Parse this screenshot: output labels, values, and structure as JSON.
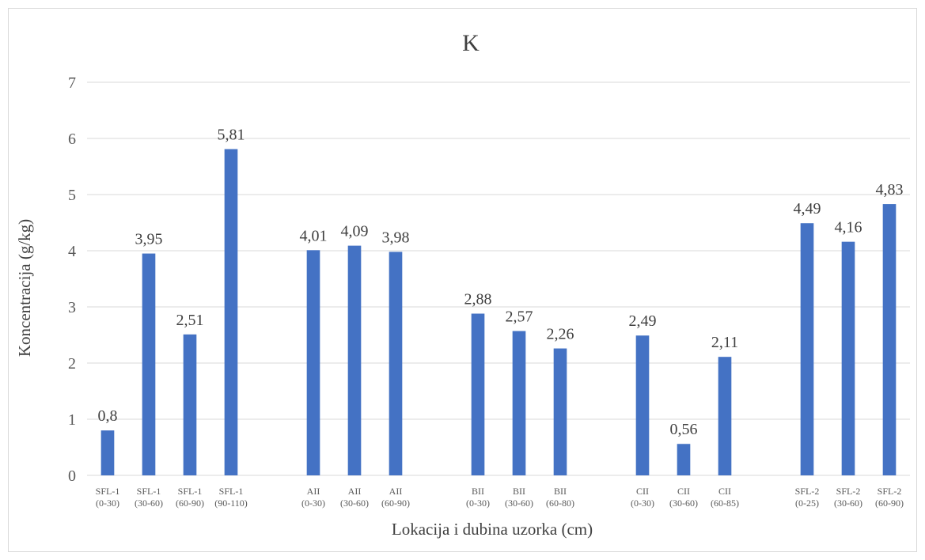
{
  "chart_data": {
    "type": "bar",
    "title": "K",
    "xlabel": "Lokacija i dubina uzorka (cm)",
    "ylabel": "Koncentracija (g/kg)",
    "ylim": [
      0,
      7
    ],
    "yticks": [
      "0",
      "1",
      "2",
      "3",
      "4",
      "5",
      "6",
      "7"
    ],
    "grid": true,
    "legend": "none",
    "bar_color": "#4472c4",
    "categories": [
      {
        "name": "SFL-1",
        "depth": "(0-30)"
      },
      {
        "name": "SFL-1",
        "depth": "(30-60)"
      },
      {
        "name": "SFL-1",
        "depth": "(60-90)"
      },
      {
        "name": "SFL-1",
        "depth": "(90-110)"
      },
      {
        "name": "",
        "depth": ""
      },
      {
        "name": "AII",
        "depth": "(0-30)"
      },
      {
        "name": "AII",
        "depth": "(30-60)"
      },
      {
        "name": "AII",
        "depth": "(60-90)"
      },
      {
        "name": "",
        "depth": ""
      },
      {
        "name": "BII",
        "depth": "(0-30)"
      },
      {
        "name": "BII",
        "depth": "(30-60)"
      },
      {
        "name": "BII",
        "depth": "(60-80)"
      },
      {
        "name": "",
        "depth": ""
      },
      {
        "name": "CII",
        "depth": "(0-30)"
      },
      {
        "name": "CII",
        "depth": "(30-60)"
      },
      {
        "name": "CII",
        "depth": "(60-85)"
      },
      {
        "name": "",
        "depth": ""
      },
      {
        "name": "SFL-2",
        "depth": "(0-25)"
      },
      {
        "name": "SFL-2",
        "depth": "(30-60)"
      },
      {
        "name": "SFL-2",
        "depth": "(60-90)"
      }
    ],
    "values": [
      0.8,
      3.95,
      2.51,
      5.81,
      null,
      4.01,
      4.09,
      3.98,
      null,
      2.88,
      2.57,
      2.26,
      null,
      2.49,
      0.56,
      2.11,
      null,
      4.49,
      4.16,
      4.83
    ],
    "data_labels": [
      "0,8",
      "3,95",
      "2,51",
      "5,81",
      "",
      "4,01",
      "4,09",
      "3,98",
      "",
      "2,88",
      "2,57",
      "2,26",
      "",
      "2,49",
      "0,56",
      "2,11",
      "",
      "4,49",
      "4,16",
      "4,83"
    ]
  }
}
